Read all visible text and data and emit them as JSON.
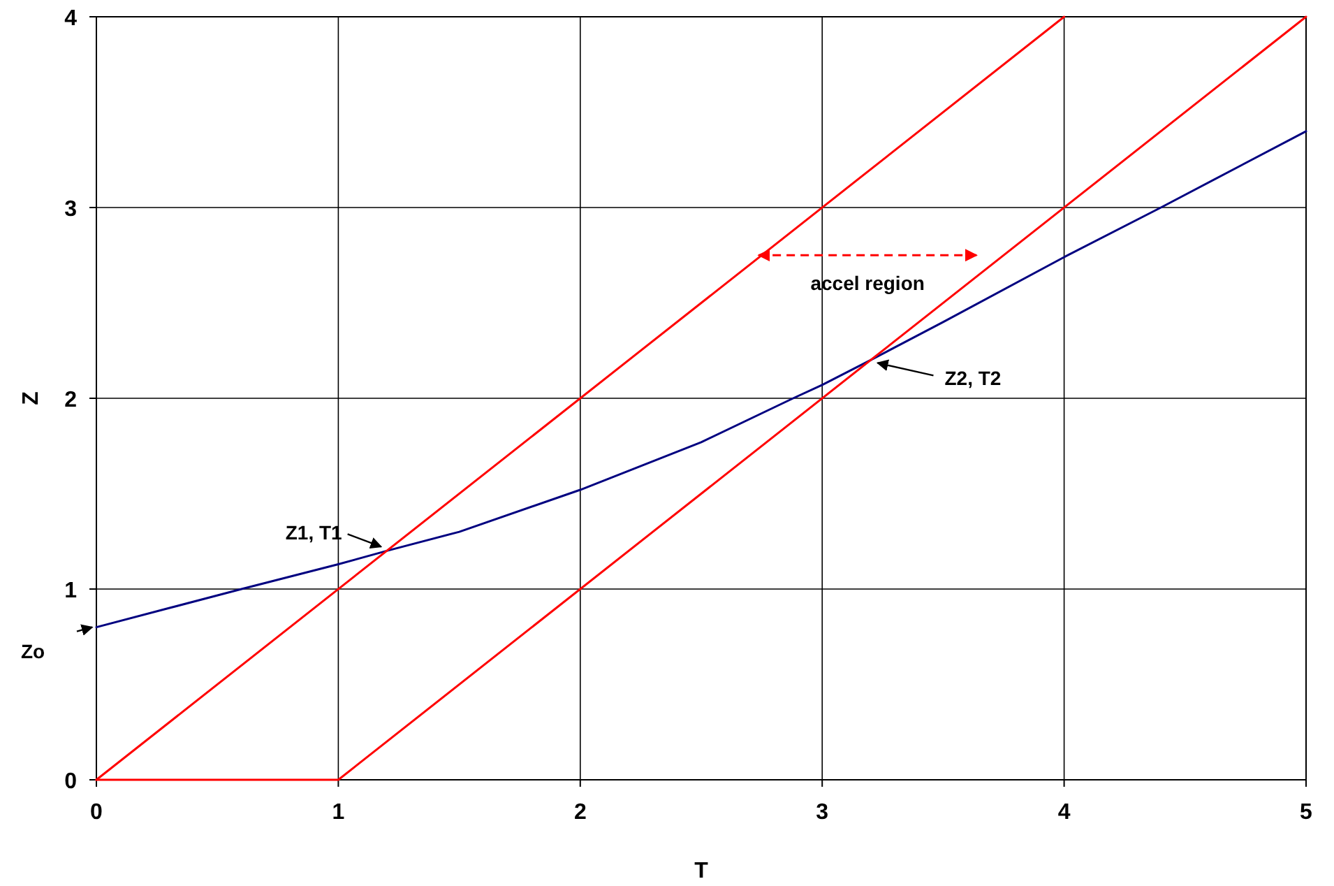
{
  "chart_data": {
    "type": "line",
    "xlabel": "T",
    "ylabel": "Z",
    "xlim": [
      0,
      5
    ],
    "xticks": [
      0,
      1,
      2,
      3,
      4,
      5
    ],
    "ylim": [
      0,
      4
    ],
    "yticks": [
      0,
      1,
      2,
      3,
      4
    ],
    "grid": true,
    "marker": "none",
    "line_style": "solid",
    "series": [
      {
        "color": "#000080",
        "x": [
          0,
          0.3,
          0.6,
          1,
          1.2,
          1.5,
          2,
          2.5,
          2.88,
          3,
          3.2,
          3.5,
          4,
          4.4,
          5
        ],
        "values": [
          0.8,
          0.9,
          1.0,
          1.13,
          1.2,
          1.3,
          1.52,
          1.77,
          2.0,
          2.07,
          2.2,
          2.4,
          2.74,
          3.0,
          3.4
        ]
      },
      {
        "color": "#ff0000",
        "x": [
          0,
          4
        ],
        "values": [
          0,
          4
        ]
      },
      {
        "color": "#ff0000",
        "x": [
          0,
          1,
          5
        ],
        "values": [
          0,
          0,
          4
        ]
      }
    ],
    "annotations": [
      {
        "text": "Zo",
        "x": 0,
        "y": 0.8
      },
      {
        "text": "Z1, T1",
        "x": 1.2,
        "y": 1.2
      },
      "accel region",
      {
        "text": "Z2,  T2",
        "x": 3.2,
        "y": 2.2
      }
    ]
  }
}
